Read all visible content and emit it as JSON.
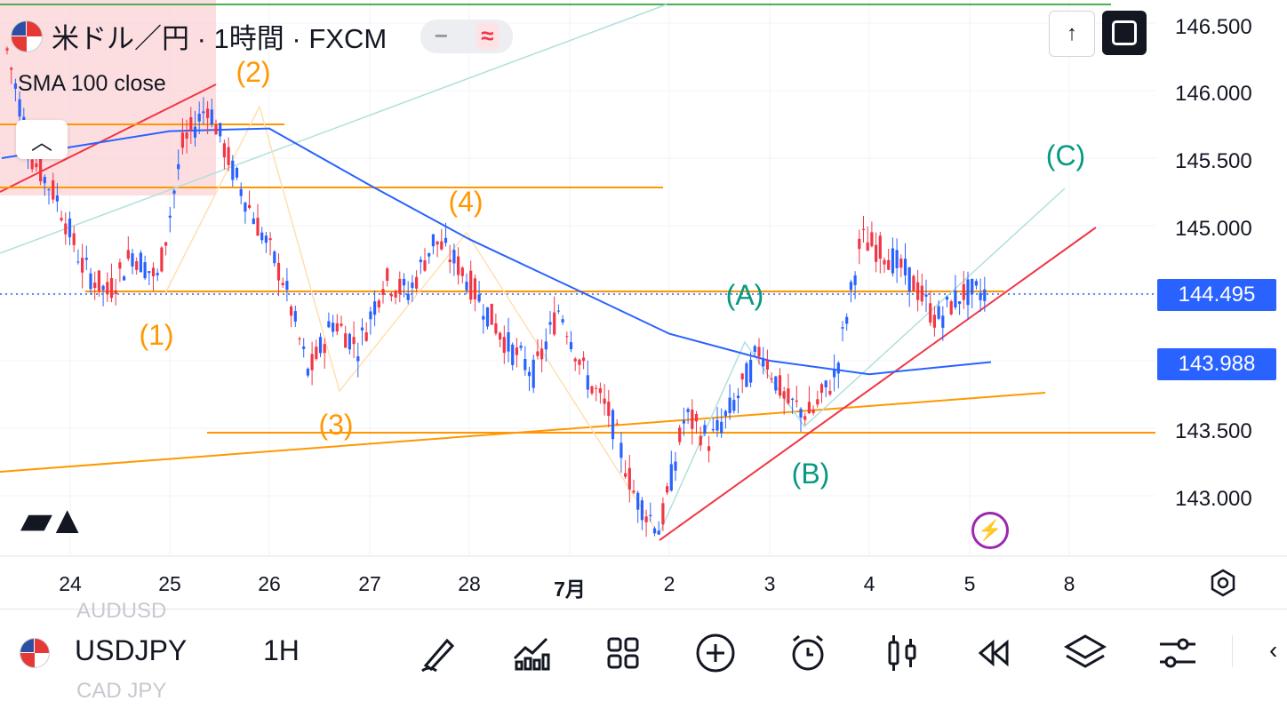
{
  "header": {
    "title": "米ドル／円 · 1時間 · FXCM",
    "indicator": "SMA 100 close",
    "minus_glyph": "−",
    "wave_glyph": "≈",
    "collapse_glyph": "︿",
    "up_glyph": "↑"
  },
  "chart_data": {
    "type": "line",
    "symbol": "USDJPY",
    "timeframe": "1H",
    "x_ticks": [
      "24",
      "25",
      "26",
      "27",
      "28",
      "7月",
      "2",
      "3",
      "4",
      "5",
      "8"
    ],
    "y_ticks": [
      "146.500",
      "146.000",
      "145.500",
      "145.000",
      "143.500",
      "143.000"
    ],
    "ylim": [
      142.6,
      146.65
    ],
    "price_tags": [
      {
        "value": "144.495",
        "color": "#2962ff"
      },
      {
        "value": "143.988",
        "color": "#2962ff"
      }
    ],
    "candle_path": [
      [
        "24",
        146.3
      ],
      [
        "24",
        145.5
      ],
      [
        "24",
        145.2
      ],
      [
        "25",
        144.7
      ],
      [
        "25",
        144.5
      ],
      [
        "25",
        144.8
      ],
      [
        "25",
        144.6
      ],
      [
        "26",
        145.6
      ],
      [
        "26",
        145.9
      ],
      [
        "26",
        145.4
      ],
      [
        "26",
        145.0
      ],
      [
        "27",
        144.6
      ],
      [
        "27",
        143.9
      ],
      [
        "27",
        144.3
      ],
      [
        "27",
        144.1
      ],
      [
        "28",
        144.6
      ],
      [
        "28",
        144.5
      ],
      [
        "28",
        144.9
      ],
      [
        "28",
        144.7
      ],
      [
        "28",
        144.4
      ],
      [
        "7月",
        144.1
      ],
      [
        "7月",
        143.9
      ],
      [
        "7月",
        144.4
      ],
      [
        "7月",
        143.9
      ],
      [
        "2",
        143.6
      ],
      [
        "2",
        143.0
      ],
      [
        "2",
        142.75
      ],
      [
        "2",
        143.6
      ],
      [
        "2",
        143.4
      ],
      [
        "3",
        143.7
      ],
      [
        "3",
        144.1
      ],
      [
        "3",
        143.7
      ],
      [
        "3",
        143.6
      ],
      [
        "4",
        143.9
      ],
      [
        "4",
        144.9
      ],
      [
        "4",
        144.8
      ],
      [
        "4",
        144.6
      ],
      [
        "5",
        144.3
      ],
      [
        "5",
        144.5
      ],
      [
        "5",
        144.5
      ]
    ],
    "sma_100": [
      [
        "24",
        145.5
      ],
      [
        "25",
        145.7
      ],
      [
        "26",
        145.72
      ],
      [
        "27",
        145.3
      ],
      [
        "28",
        144.9
      ],
      [
        "7月",
        144.55
      ],
      [
        "2",
        144.2
      ],
      [
        "3",
        144.0
      ],
      [
        "4",
        143.9
      ],
      [
        "5",
        143.99
      ]
    ],
    "wave_labels_orange": [
      "(1)",
      "(2)",
      "(3)",
      "(4)"
    ],
    "wave_labels_green": [
      "(A)",
      "(B)",
      "(C)"
    ]
  },
  "bottom": {
    "symbol": "USDJPY",
    "timeframe": "1H",
    "ghost_above": "AUDUSD",
    "ghost_below": "CAD JPY"
  }
}
